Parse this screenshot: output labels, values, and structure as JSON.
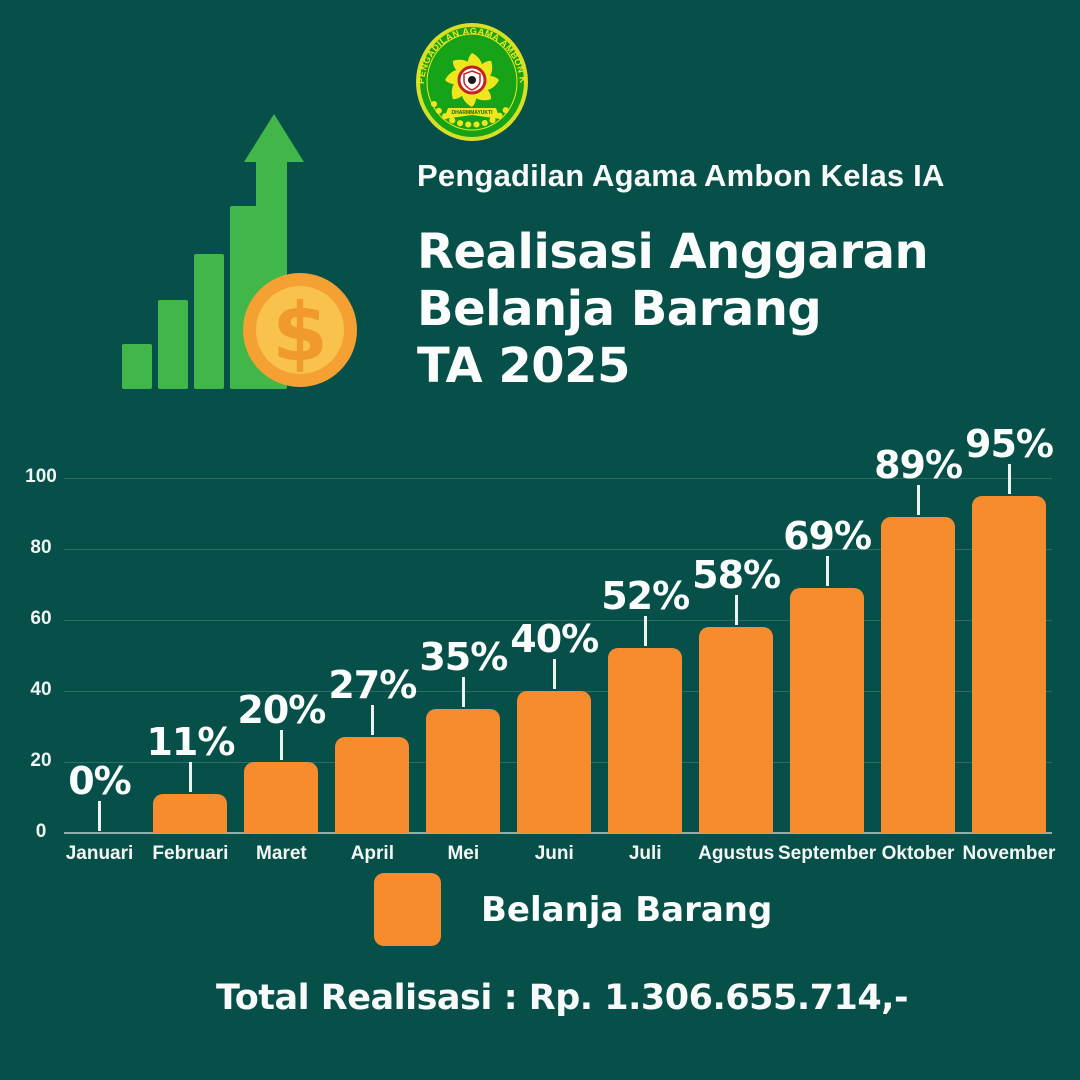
{
  "header": {
    "organization": "Pengadilan Agama Ambon Kelas IA",
    "title_lines": [
      "Realisasi Anggaran",
      "Belanja Barang",
      "TA 2025"
    ],
    "logo_text": "PENGADILAN AGAMA AMBON KLAS I A",
    "logo_banner_text": "DHARMMAYUKTI"
  },
  "chart_data": {
    "type": "bar",
    "title": "Realisasi Anggaran Belanja Barang TA 2025",
    "categories": [
      "Januari",
      "Februari",
      "Maret",
      "April",
      "Mei",
      "Juni",
      "Juli",
      "Agustus",
      "September",
      "Oktober",
      "November"
    ],
    "values": [
      0,
      11,
      20,
      27,
      35,
      40,
      52,
      58,
      69,
      89,
      95
    ],
    "labels": [
      "0%",
      "11%",
      "20%",
      "27%",
      "35%",
      "40%",
      "52%",
      "58%",
      "69%",
      "89%",
      "95%"
    ],
    "series_name": "Belanja Barang",
    "xlabel": "",
    "ylabel": "",
    "ylim": [
      0,
      100
    ],
    "yticks": [
      0,
      20,
      40,
      60,
      80,
      100
    ],
    "grid": true,
    "bar_color": "#F78C2E",
    "legend_position": "bottom"
  },
  "legend": {
    "label": "Belanja Barang",
    "swatch_color": "#F78C2E"
  },
  "footer": {
    "total_label": "Total Realisasi :",
    "total_value": "Rp. 1.306.655.714,-"
  },
  "colors": {
    "background": "#07504A",
    "bar_orange": "#F78C2E",
    "icon_green": "#41B649",
    "coin_outer": "#F5A033",
    "coin_inner": "#F9C24D",
    "text_white": "#F7FAF9",
    "logo_green": "#17A317",
    "logo_yellow": "#EFE71D"
  }
}
